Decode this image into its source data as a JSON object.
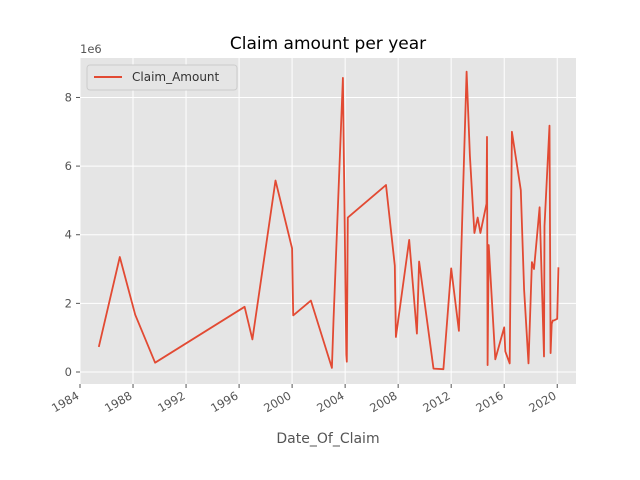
{
  "chart_data": {
    "type": "line",
    "title": "Claim amount per year",
    "xlabel": "Date_Of_Claim",
    "ylabel": "",
    "y_offset_label": "1e6",
    "x_axis_type": "date",
    "xlim": [
      "1984-01-01",
      "2021-06-01"
    ],
    "ylim": [
      -0.35,
      9.15
    ],
    "y_scale_multiplier": 1000000,
    "xticks": [
      "1984",
      "1988",
      "1992",
      "1996",
      "2000",
      "2004",
      "2008",
      "2012",
      "2016",
      "2020"
    ],
    "yticks": [
      0,
      2,
      4,
      6,
      8
    ],
    "grid": true,
    "legend_position": "top-left",
    "colors": {
      "plot_background": "#e5e5e5",
      "grid": "#ffffff",
      "line": "#e24a33",
      "text": "#555555"
    },
    "series": [
      {
        "name": "Claim_Amount",
        "x": [
          "1985-06-01",
          "1987-01-01",
          "1988-03-01",
          "1989-09-01",
          "1996-06-01",
          "1997-01-01",
          "1998-10-01",
          "2000-01-01",
          "2000-02-01",
          "2001-06-01",
          "2003-01-01",
          "2003-02-15",
          "2003-11-01",
          "2004-02-01",
          "2004-02-15",
          "2004-03-15",
          "2007-02-01",
          "2007-10-01",
          "2007-11-01",
          "2008-11-01",
          "2009-06-01",
          "2009-08-01",
          "2010-09-01",
          "2011-06-01",
          "2012-01-01",
          "2012-08-01",
          "2013-03-01",
          "2013-06-01",
          "2013-10-01",
          "2014-01-01",
          "2014-03-15",
          "2014-09-01",
          "2014-09-15",
          "2014-10-01",
          "2014-11-01",
          "2015-05-01",
          "2016-01-01",
          "2016-02-01",
          "2016-06-01",
          "2016-08-01",
          "2017-04-01",
          "2017-07-01",
          "2017-11-01",
          "2018-02-01",
          "2018-04-01",
          "2018-07-01",
          "2018-09-01",
          "2019-01-01",
          "2019-01-15",
          "2019-06-01",
          "2019-07-01",
          "2019-08-01",
          "2019-09-01",
          "2019-10-01",
          "2020-01-01",
          "2020-02-01"
        ],
        "values": [
          0.73,
          3.35,
          1.67,
          0.27,
          1.9,
          0.95,
          5.58,
          3.6,
          1.65,
          2.08,
          0.12,
          1.5,
          8.57,
          0.5,
          0.3,
          4.5,
          5.45,
          3.1,
          1.02,
          3.85,
          1.12,
          3.22,
          0.1,
          0.08,
          3.02,
          1.2,
          8.75,
          6.3,
          4.05,
          4.5,
          4.05,
          4.9,
          6.85,
          0.2,
          3.7,
          0.37,
          1.3,
          0.6,
          0.25,
          7.0,
          5.3,
          2.4,
          0.25,
          3.2,
          3.0,
          4.05,
          4.8,
          0.45,
          4.25,
          7.18,
          0.55,
          1.4,
          1.5,
          1.5,
          1.55,
          3.05
        ]
      }
    ]
  }
}
